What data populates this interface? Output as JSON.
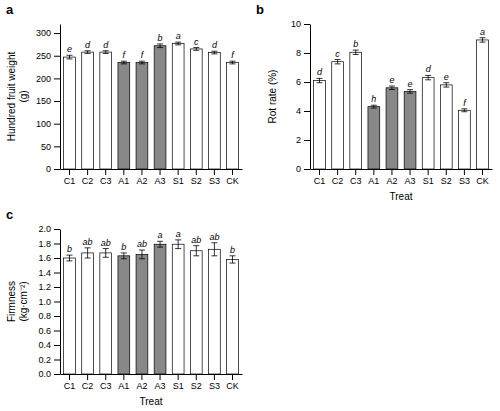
{
  "chart_data": [
    {
      "type": "bar",
      "title": "a",
      "ylabel": "Hundred fruit weight\n(g)",
      "categories": [
        "C1",
        "C2",
        "C3",
        "A1",
        "A2",
        "A3",
        "S1",
        "S2",
        "S3",
        "CK"
      ],
      "values": [
        247,
        258,
        258,
        235,
        235,
        272,
        277,
        265,
        257,
        235
      ],
      "errors": [
        4,
        3,
        3,
        3,
        3,
        4,
        3,
        3,
        3,
        3
      ],
      "annotations": [
        "e",
        "d",
        "d",
        "f",
        "f",
        "b",
        "a",
        "c",
        "d",
        "f"
      ],
      "colors": [
        "white",
        "white",
        "white",
        "#888888",
        "#888888",
        "#888888",
        "white",
        "white",
        "white",
        "white"
      ],
      "ylim": [
        0,
        320
      ],
      "yticks": [
        0,
        50,
        100,
        150,
        200,
        250,
        300
      ]
    },
    {
      "type": "bar",
      "title": "b",
      "ylabel": "Rot rate (%)",
      "xlabel": "Treat",
      "categories": [
        "C1",
        "C2",
        "C3",
        "A1",
        "A2",
        "A3",
        "S1",
        "S2",
        "S3",
        "CK"
      ],
      "values": [
        6.1,
        7.4,
        8.05,
        4.3,
        5.6,
        5.35,
        6.3,
        5.8,
        4.05,
        8.9
      ],
      "errors": [
        0.15,
        0.15,
        0.15,
        0.1,
        0.12,
        0.12,
        0.15,
        0.15,
        0.1,
        0.15
      ],
      "annotations": [
        "d",
        "c",
        "b",
        "h",
        "e",
        "e",
        "d",
        "e",
        "f",
        "a"
      ],
      "colors": [
        "white",
        "white",
        "white",
        "#888888",
        "#888888",
        "#888888",
        "white",
        "white",
        "white",
        "white"
      ],
      "ylim": [
        0,
        10
      ],
      "yticks": [
        0,
        2,
        4,
        6,
        8,
        10
      ]
    },
    {
      "type": "bar",
      "title": "c",
      "ylabel": "Firmness\n(kg·cm⁻²)",
      "xlabel": "Treat",
      "categories": [
        "C1",
        "C2",
        "C3",
        "A1",
        "A2",
        "A3",
        "S1",
        "S2",
        "S3",
        "CK"
      ],
      "values": [
        1.6,
        1.67,
        1.67,
        1.63,
        1.65,
        1.79,
        1.79,
        1.7,
        1.72,
        1.58
      ],
      "errors": [
        0.04,
        0.07,
        0.06,
        0.04,
        0.06,
        0.04,
        0.06,
        0.07,
        0.09,
        0.05
      ],
      "annotations": [
        "b",
        "ab",
        "ab",
        "b",
        "ab",
        "a",
        "a",
        "ab",
        "ab",
        "b"
      ],
      "colors": [
        "white",
        "white",
        "white",
        "#888888",
        "#888888",
        "#888888",
        "white",
        "white",
        "white",
        "white"
      ],
      "ylim": [
        0.0,
        2.0
      ],
      "yticks": [
        {
          "value": 0,
          "label": "0.0"
        },
        0.2,
        0.4,
        0.6,
        0.8,
        {
          "value": 1,
          "label": "1.0"
        },
        1.2,
        1.4,
        1.6,
        1.8,
        {
          "value": 2,
          "label": "2.0"
        }
      ]
    }
  ]
}
